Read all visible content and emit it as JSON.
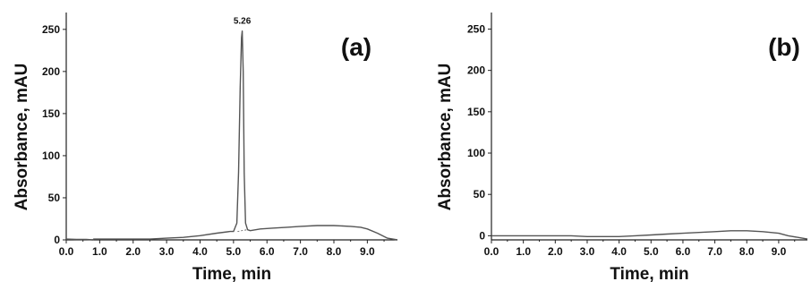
{
  "chart_data": [
    {
      "type": "line",
      "panel_label": "(a)",
      "xlabel": "Time, min",
      "ylabel": "Absorbance, mAU",
      "xlim": [
        0,
        9.9
      ],
      "ylim": [
        0,
        270
      ],
      "x_ticks": [
        "0.0",
        "1.0",
        "2.0",
        "3.0",
        "4.0",
        "5.0",
        "6.0",
        "7.0",
        "8.0",
        "9.0"
      ],
      "y_ticks": [
        "0",
        "50",
        "100",
        "150",
        "200",
        "250"
      ],
      "peak_annotation": {
        "label": "5.26",
        "x": 5.26,
        "y": 248
      },
      "line_color": "#555555",
      "series": [
        {
          "x": [
            0.0,
            0.3,
            0.6,
            0.8,
            0.82,
            1.0,
            1.5,
            2.0,
            2.5,
            3.0,
            3.5,
            4.0,
            4.5,
            4.9,
            5.0,
            5.1,
            5.15,
            5.2,
            5.24,
            5.26,
            5.29,
            5.32,
            5.36,
            5.42,
            5.5,
            5.8,
            6.2,
            6.6,
            7.0,
            7.5,
            8.0,
            8.5,
            8.8,
            9.0,
            9.3,
            9.6,
            9.9
          ],
          "y": [
            1,
            0.5,
            0.5,
            0,
            1,
            1,
            1,
            1,
            1,
            2,
            3,
            5,
            8,
            10,
            10,
            20,
            80,
            180,
            240,
            248,
            200,
            80,
            20,
            12,
            11,
            13,
            14,
            15,
            16,
            17,
            17,
            16,
            15,
            13,
            8,
            2,
            0
          ]
        }
      ]
    },
    {
      "type": "line",
      "panel_label": "(b)",
      "xlabel": "Time, min",
      "ylabel": "Absorbance, mAU",
      "xlim": [
        0,
        9.9
      ],
      "ylim": [
        -5,
        270
      ],
      "x_ticks": [
        "0.0",
        "1.0",
        "2.0",
        "3.0",
        "4.0",
        "5.0",
        "6.0",
        "7.0",
        "8.0",
        "9.0"
      ],
      "y_ticks": [
        "0",
        "50",
        "100",
        "150",
        "200",
        "250"
      ],
      "line_color": "#555555",
      "series": [
        {
          "x": [
            0.0,
            0.5,
            1.0,
            1.5,
            2.0,
            2.5,
            3.0,
            3.5,
            4.0,
            4.5,
            5.0,
            5.5,
            6.0,
            6.5,
            7.0,
            7.5,
            8.0,
            8.5,
            9.0,
            9.3,
            9.6,
            9.9
          ],
          "y": [
            0,
            0,
            0,
            0,
            0,
            0,
            -1,
            -1,
            -1,
            0,
            1,
            2,
            3,
            4,
            5,
            6,
            6,
            5,
            3,
            0,
            -2,
            -4
          ]
        }
      ]
    }
  ]
}
